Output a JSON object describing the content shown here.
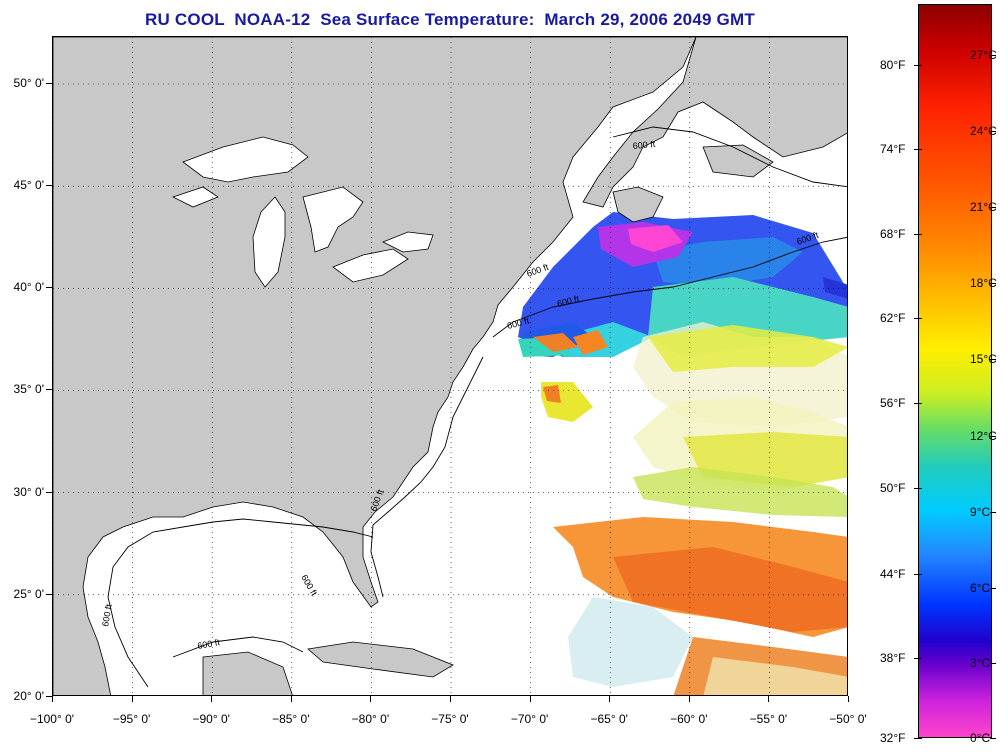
{
  "title": "RU COOL  NOAA-12  Sea Surface Temperature:  March 29, 2006 2049 GMT",
  "map": {
    "lon_range": [
      -100,
      -50
    ],
    "lat_range": [
      20,
      52.3
    ],
    "lat_labels": [
      {
        "value": 50,
        "text": "50° 0'"
      },
      {
        "value": 45,
        "text": "45° 0'"
      },
      {
        "value": 40,
        "text": "40° 0'"
      },
      {
        "value": 35,
        "text": "35° 0'"
      },
      {
        "value": 30,
        "text": "30° 0'"
      },
      {
        "value": 25,
        "text": "25° 0'"
      },
      {
        "value": 20,
        "text": "20° 0'"
      }
    ],
    "lon_labels": [
      {
        "value": -100,
        "text": "−100° 0'"
      },
      {
        "value": -95,
        "text": "−95° 0'"
      },
      {
        "value": -90,
        "text": "−90° 0'"
      },
      {
        "value": -85,
        "text": "−85° 0'"
      },
      {
        "value": -80,
        "text": "−80° 0'"
      },
      {
        "value": -75,
        "text": "−75° 0'"
      },
      {
        "value": -70,
        "text": "−70° 0'"
      },
      {
        "value": -65,
        "text": "−65° 0'"
      },
      {
        "value": -60,
        "text": "−60° 0'"
      },
      {
        "value": -55,
        "text": "−55° 0'"
      },
      {
        "value": -50,
        "text": "−50° 0'"
      }
    ],
    "contour_label": "600 ft",
    "land_color": "#c8c8c8",
    "grid": "dotted"
  },
  "colorbar": {
    "fahrenheit_labels": [
      "80°F",
      "74°F",
      "68°F",
      "62°F",
      "56°F",
      "50°F",
      "44°F",
      "38°F",
      "32°F"
    ],
    "celsius_labels": [
      "27°C",
      "24°C",
      "21°C",
      "18°C",
      "15°C",
      "12°C",
      "9°C",
      "6°C",
      "3°C",
      "0°C"
    ],
    "colors": {
      "hot": "#8b0000",
      "warm": "#ff6600",
      "mid": "#ffee00",
      "cool": "#00ccff",
      "cold": "#0033ff",
      "freezing": "#ff44cc"
    }
  }
}
